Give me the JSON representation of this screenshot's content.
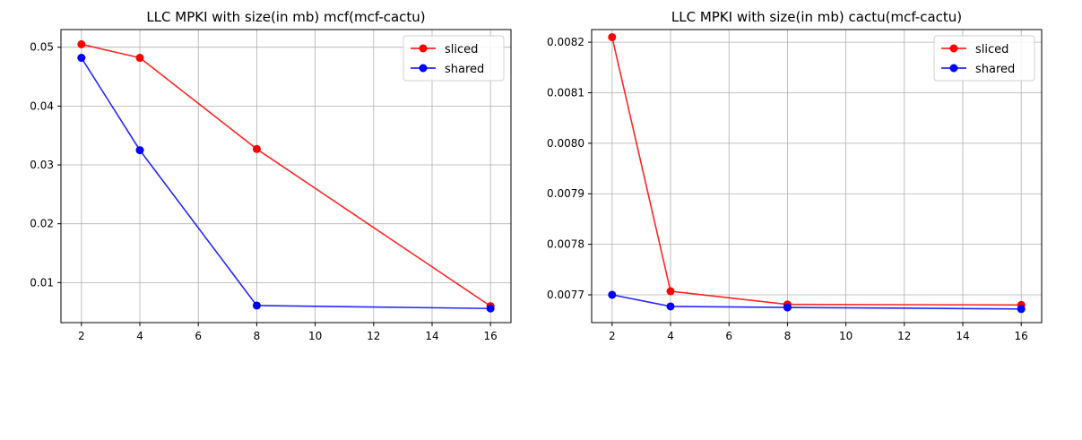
{
  "chart_data": [
    {
      "type": "line",
      "title": "LLC MPKI with size(in mb) mcf(mcf-cactu)",
      "xlabel": "",
      "ylabel": "",
      "x": [
        2,
        4,
        8,
        16
      ],
      "xlim": [
        1.3,
        16.7
      ],
      "ylim": [
        0.0032,
        0.053
      ],
      "xticks": [
        2,
        4,
        6,
        8,
        10,
        12,
        14,
        16
      ],
      "yticks": [
        0.01,
        0.02,
        0.03,
        0.04,
        0.05
      ],
      "ytick_labels": [
        "0.01",
        "0.02",
        "0.03",
        "0.04",
        "0.05"
      ],
      "grid": true,
      "legend_position": "top-right",
      "series": [
        {
          "name": "sliced",
          "color": "#ff0000",
          "values": [
            0.0505,
            0.0482,
            0.0327,
            0.006
          ]
        },
        {
          "name": "shared",
          "color": "#0000ff",
          "values": [
            0.0482,
            0.0325,
            0.0061,
            0.0056
          ]
        }
      ]
    },
    {
      "type": "line",
      "title": "LLC MPKI with size(in mb) cactu(mcf-cactu)",
      "xlabel": "",
      "ylabel": "",
      "x": [
        2,
        4,
        8,
        16
      ],
      "xlim": [
        1.3,
        16.7
      ],
      "ylim": [
        0.007645,
        0.008225
      ],
      "xticks": [
        2,
        4,
        6,
        8,
        10,
        12,
        14,
        16
      ],
      "yticks": [
        0.0077,
        0.0078,
        0.0079,
        0.008,
        0.0081,
        0.0082
      ],
      "ytick_labels": [
        "0.0077",
        "0.0078",
        "0.0079",
        "0.0080",
        "0.0081",
        "0.0082"
      ],
      "grid": true,
      "legend_position": "top-right",
      "series": [
        {
          "name": "sliced",
          "color": "#ff0000",
          "values": [
            0.00821,
            0.007707,
            0.007681,
            0.00768
          ]
        },
        {
          "name": "shared",
          "color": "#0000ff",
          "values": [
            0.0077,
            0.007677,
            0.007675,
            0.007672
          ]
        }
      ]
    }
  ]
}
